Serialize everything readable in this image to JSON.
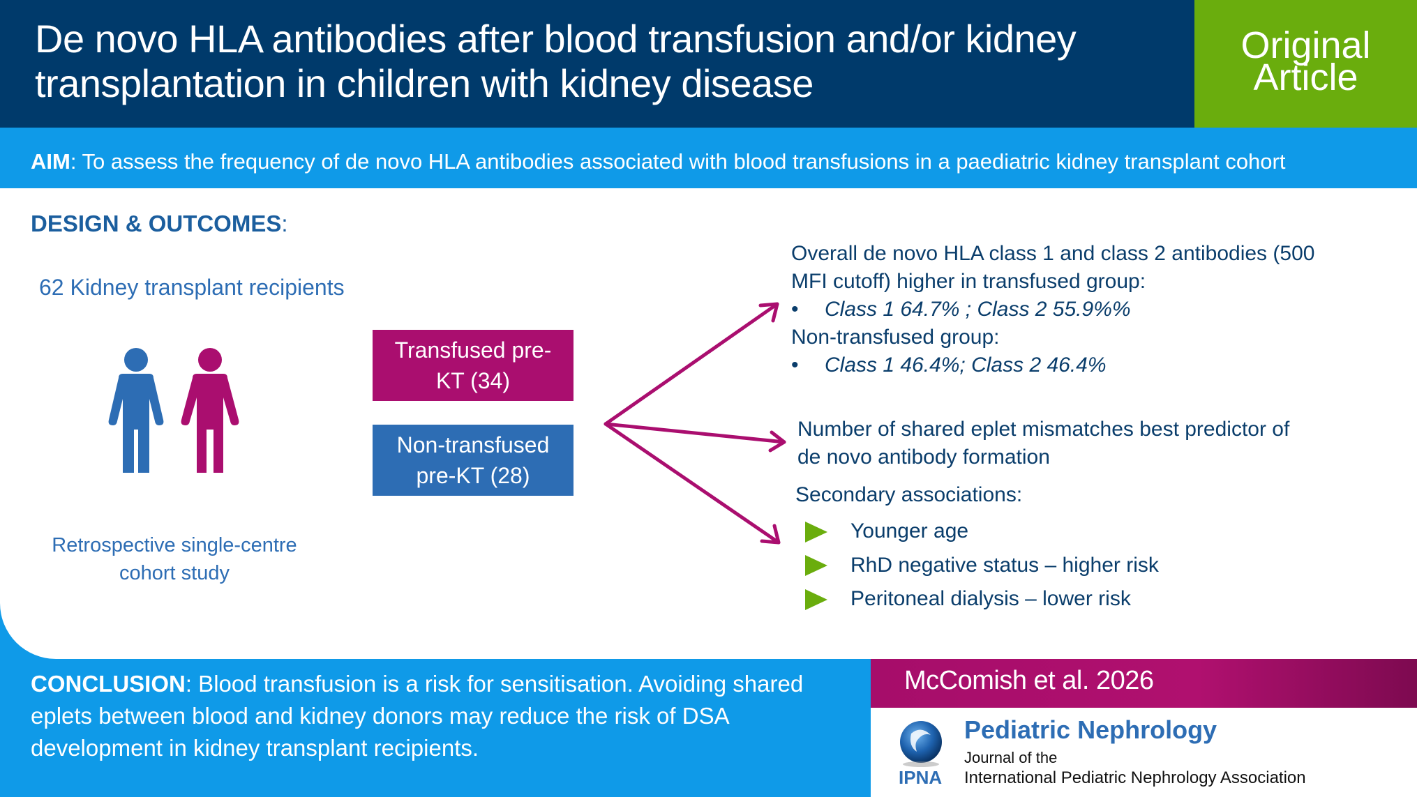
{
  "header": {
    "title_line1": "De novo HLA antibodies after blood transfusion and/or kidney",
    "title_line2": "transplantation in children with kidney disease",
    "badge_line1": "Original",
    "badge_line2": "Article"
  },
  "aim": {
    "label": "AIM",
    "text": ": To assess the frequency of de novo HLA antibodies associated with blood transfusions in a paediatric kidney transplant cohort"
  },
  "design": {
    "label": "DESIGN & OUTCOMES",
    "colon": ":",
    "recipients": "62 Kidney transplant recipients",
    "study_line1": "Retrospective single-centre",
    "study_line2": "cohort study",
    "groups": [
      {
        "line1": "Transfused pre-",
        "line2": "KT (34)"
      },
      {
        "line1": "Non-transfused",
        "line2": "pre-KT (28)"
      }
    ]
  },
  "outcomes": {
    "overall_line1": "Overall de novo HLA class 1 and class 2 antibodies (500",
    "overall_line2": "MFI cutoff) higher in transfused group:",
    "transfused_bullet": "Class 1 64.7% ; Class 2 55.9%%",
    "nontransfused_label": "Non-transfused group:",
    "nontransfused_bullet": "Class 1 46.4%; Class 2 46.4%",
    "bullet_symbol": "•",
    "predictor_line1": "Number of shared eplet mismatches best predictor of",
    "predictor_line2": "de novo antibody formation",
    "secondary_label": "Secondary associations:",
    "secondary_items": [
      "Younger age",
      "RhD negative status – higher risk",
      "Peritoneal dialysis – lower risk"
    ]
  },
  "conclusion": {
    "label": "CONCLUSION",
    "line1": ": Blood transfusion is a risk for sensitisation. Avoiding shared",
    "line2": "eplets between blood and kidney donors may reduce the risk of DSA",
    "line3": "development in kidney transplant recipients."
  },
  "citation": "McComish et al. 2026",
  "journal": {
    "name": "Pediatric Nephrology",
    "journal_of": "Journal of the",
    "association": "International Pediatric Nephrology Association",
    "ipna": "IPNA"
  },
  "colors": {
    "navy": "#003a6b",
    "sky": "#0f9ae8",
    "green": "#6aad0d",
    "magenta": "#aa0e6f",
    "blue": "#2d6db4"
  },
  "icons": [
    "male-person-icon",
    "female-person-icon",
    "arrow-icon",
    "triangle-bullet-icon",
    "journal-logo-icon"
  ]
}
